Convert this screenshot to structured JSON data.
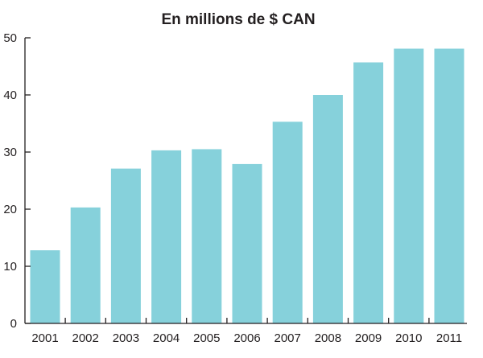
{
  "chart_data": {
    "type": "bar",
    "title": "En millions de $ CAN",
    "xlabel": "",
    "ylabel": "",
    "categories": [
      "2001",
      "2002",
      "2003",
      "2004",
      "2005",
      "2006",
      "2007",
      "2008",
      "2009",
      "2010",
      "2011"
    ],
    "series": [
      {
        "values": [
          12.8,
          20.3,
          27.1,
          30.3,
          30.5,
          27.9,
          35.3,
          40.0,
          45.7,
          48.1,
          48.1
        ]
      }
    ],
    "ylim": [
      0,
      50
    ],
    "yticks": [
      0,
      10,
      20,
      30,
      40,
      50
    ],
    "ytick_labels": [
      "0",
      "10",
      "20",
      "30",
      "40",
      "50"
    ],
    "grid": false,
    "legend": "none",
    "colors": {
      "bar": "#86d1db",
      "axis": "#231f20",
      "text": "#231f20"
    }
  }
}
